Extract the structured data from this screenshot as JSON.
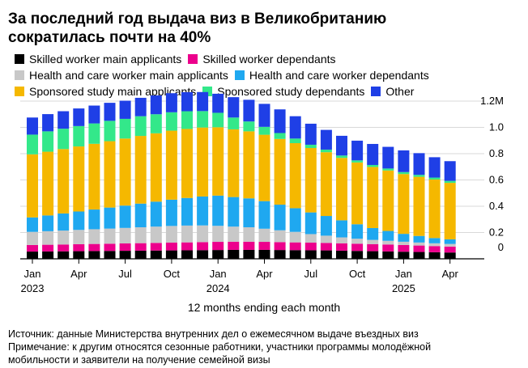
{
  "title_lines": [
    "За последний год выдача виз в Великобританию",
    "сократилась почти на 40%"
  ],
  "chart_data": {
    "type": "bar",
    "stacked": true,
    "unit_label": "1.2M",
    "ylim": [
      0,
      1.2
    ],
    "y_ticks": [
      0,
      0.2,
      0.4,
      0.6,
      0.8,
      1.0,
      1.2
    ],
    "y_tick_labels": [
      "0",
      "0.2",
      "0.4",
      "0.6",
      "0.8",
      "1.0",
      "1.2M"
    ],
    "axis_side": "right",
    "xlabel": "12 months ending each month",
    "x_tick_labels": [
      {
        "index": 0,
        "month": "Jan",
        "year": "2023"
      },
      {
        "index": 3,
        "month": "Apr",
        "year": ""
      },
      {
        "index": 6,
        "month": "Jul",
        "year": ""
      },
      {
        "index": 9,
        "month": "Oct",
        "year": ""
      },
      {
        "index": 12,
        "month": "Jan",
        "year": "2024"
      },
      {
        "index": 15,
        "month": "Apr",
        "year": ""
      },
      {
        "index": 18,
        "month": "Jul",
        "year": ""
      },
      {
        "index": 21,
        "month": "Oct",
        "year": ""
      },
      {
        "index": 24,
        "month": "Jan",
        "year": "2025"
      },
      {
        "index": 27,
        "month": "Apr",
        "year": ""
      }
    ],
    "categories": [
      "2023-01",
      "2023-02",
      "2023-03",
      "2023-04",
      "2023-05",
      "2023-06",
      "2023-07",
      "2023-08",
      "2023-09",
      "2023-10",
      "2023-11",
      "2023-12",
      "2024-01",
      "2024-02",
      "2024-03",
      "2024-04",
      "2024-05",
      "2024-06",
      "2024-07",
      "2024-08",
      "2024-09",
      "2024-10",
      "2024-11",
      "2024-12",
      "2025-01",
      "2025-02",
      "2025-03",
      "2025-04"
    ],
    "legend_position": "top",
    "series": [
      {
        "name": "Skilled worker main applicants",
        "color": "#000000",
        "values": [
          0.055,
          0.056,
          0.057,
          0.058,
          0.059,
          0.06,
          0.061,
          0.062,
          0.063,
          0.064,
          0.065,
          0.066,
          0.067,
          0.068,
          0.068,
          0.068,
          0.067,
          0.066,
          0.065,
          0.064,
          0.062,
          0.06,
          0.058,
          0.056,
          0.054,
          0.052,
          0.05,
          0.048
        ]
      },
      {
        "name": "Skilled worker dependants",
        "color": "#ec008c",
        "values": [
          0.05,
          0.051,
          0.052,
          0.053,
          0.054,
          0.055,
          0.056,
          0.057,
          0.058,
          0.059,
          0.06,
          0.061,
          0.062,
          0.062,
          0.062,
          0.061,
          0.06,
          0.059,
          0.058,
          0.057,
          0.056,
          0.055,
          0.054,
          0.053,
          0.051,
          0.049,
          0.047,
          0.045
        ]
      },
      {
        "name": "Health and care worker main applicants",
        "color": "#c8c8c8",
        "values": [
          0.1,
          0.103,
          0.106,
          0.109,
          0.112,
          0.115,
          0.118,
          0.121,
          0.124,
          0.127,
          0.128,
          0.127,
          0.122,
          0.115,
          0.11,
          0.1,
          0.09,
          0.08,
          0.065,
          0.055,
          0.045,
          0.038,
          0.032,
          0.028,
          0.025,
          0.023,
          0.021,
          0.02
        ]
      },
      {
        "name": "Health and care worker dependants",
        "color": "#1fa8f0",
        "values": [
          0.11,
          0.12,
          0.13,
          0.14,
          0.15,
          0.16,
          0.17,
          0.18,
          0.19,
          0.2,
          0.21,
          0.22,
          0.23,
          0.225,
          0.22,
          0.21,
          0.195,
          0.18,
          0.165,
          0.15,
          0.13,
          0.11,
          0.09,
          0.075,
          0.06,
          0.05,
          0.04,
          0.035
        ]
      },
      {
        "name": "Sponsored study main applicants",
        "color": "#f5b800",
        "values": [
          0.48,
          0.485,
          0.49,
          0.495,
          0.5,
          0.505,
          0.51,
          0.515,
          0.52,
          0.525,
          0.525,
          0.525,
          0.52,
          0.515,
          0.51,
          0.505,
          0.5,
          0.495,
          0.49,
          0.485,
          0.475,
          0.47,
          0.465,
          0.46,
          0.455,
          0.45,
          0.445,
          0.43
        ]
      },
      {
        "name": "Sponsored study dependants",
        "color": "#33e88a",
        "values": [
          0.15,
          0.155,
          0.155,
          0.155,
          0.155,
          0.155,
          0.15,
          0.15,
          0.145,
          0.14,
          0.135,
          0.125,
          0.11,
          0.09,
          0.075,
          0.06,
          0.045,
          0.035,
          0.025,
          0.02,
          0.018,
          0.016,
          0.015,
          0.015,
          0.015,
          0.015,
          0.015,
          0.015
        ]
      },
      {
        "name": "Other",
        "color": "#1f3fe6",
        "values": [
          0.13,
          0.131,
          0.133,
          0.134,
          0.136,
          0.137,
          0.138,
          0.14,
          0.143,
          0.145,
          0.145,
          0.145,
          0.145,
          0.155,
          0.165,
          0.175,
          0.18,
          0.17,
          0.16,
          0.15,
          0.15,
          0.15,
          0.16,
          0.165,
          0.165,
          0.165,
          0.155,
          0.15
        ]
      }
    ]
  },
  "legend_rows": [
    [
      {
        "label": "Skilled worker main applicants",
        "color": "#000000"
      },
      {
        "label": "Skilled worker dependants",
        "color": "#ec008c"
      }
    ],
    [
      {
        "label": "Health and care worker main applicants",
        "color": "#c8c8c8"
      },
      {
        "label": "Health and care worker dependants",
        "color": "#1fa8f0"
      }
    ],
    [
      {
        "label": "Sponsored study main applicants",
        "color": "#f5b800"
      },
      {
        "label": "Sponsored study dependants",
        "color": "#33e88a"
      },
      {
        "label": "Other",
        "color": "#1f3fe6"
      }
    ]
  ],
  "source_lines": [
    "Источник: данные Министерства внутренних дел о ежемесячном выдаче въездных виз",
    "Примечание: к другим относятся сезонные работники, участники программы молодёжной",
    "мобильности и заявители на получение семейной визы"
  ]
}
